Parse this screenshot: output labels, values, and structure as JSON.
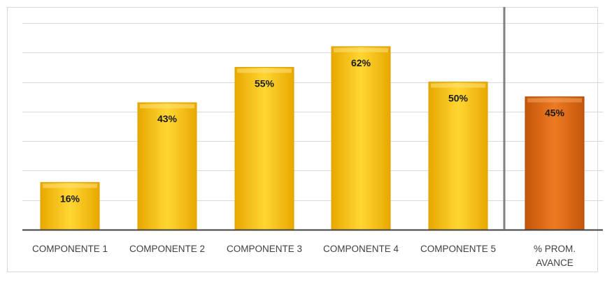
{
  "chart_data": {
    "type": "bar",
    "title": "",
    "xlabel": "",
    "ylabel": "",
    "ylim": [
      0,
      70
    ],
    "grid": true,
    "legend": "none",
    "categories": [
      "COMPONENTE 1",
      "COMPONENTE 2",
      "COMPONENTE 3",
      "COMPONENTE 4",
      "COMPONENTE 5",
      "% PROM. AVANCE"
    ],
    "values": [
      16,
      43,
      55,
      62,
      50,
      45
    ],
    "data_labels": [
      "16%",
      "43%",
      "55%",
      "62%",
      "50%",
      "45%"
    ],
    "colors": {
      "bar": "#FFC000",
      "bar_highlight": "#FFE07A",
      "average_bar": "#E46C0A",
      "average_bar_highlight": "#F2A25C",
      "gridline": "#D9D9D9",
      "axis": "#404040",
      "separator": "#7F7F7F"
    }
  }
}
